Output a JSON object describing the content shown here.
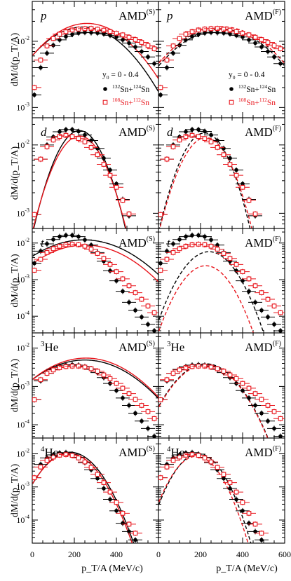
{
  "chart_data": {
    "type": "scatter",
    "layout": "5 rows x 2 columns, shared axes",
    "ylabel": "dM/d(p_T/A)",
    "xlabel": "p_T/A (MeV/c)",
    "xlim": [
      0,
      600
    ],
    "x_ticks": [
      "0",
      "200",
      "400",
      "600"
    ],
    "y_scale": "log",
    "legend": {
      "rapidity": "y0 = 0 - 0.4",
      "entries": [
        {
          "label": "132Sn+124Sn",
          "marker": "filled-circle",
          "color": "#000000"
        },
        {
          "label": "108Sn+112Sn",
          "marker": "open-square",
          "color": "#e8141b"
        }
      ]
    },
    "models": {
      "left": "AMD(S)",
      "right": "AMD(F)",
      "left_style": "solid",
      "right_style": "dashed"
    },
    "panels": [
      {
        "species": "p",
        "ylim": [
          0.0007,
          0.04
        ],
        "y_ticks": [
          {
            "value": 0.001,
            "base": "10",
            "exp": "-3"
          },
          {
            "value": 0.01,
            "base": "10",
            "exp": "-2"
          }
        ],
        "data_132": [
          [
            10,
            0.00155
          ],
          [
            40,
            0.004
          ],
          [
            70,
            0.0066
          ],
          [
            100,
            0.0087
          ],
          [
            130,
            0.0105
          ],
          [
            160,
            0.0118
          ],
          [
            190,
            0.0127
          ],
          [
            220,
            0.0133
          ],
          [
            250,
            0.0136
          ],
          [
            280,
            0.0135
          ],
          [
            310,
            0.0133
          ],
          [
            340,
            0.0129
          ],
          [
            370,
            0.0123
          ],
          [
            400,
            0.0116
          ],
          [
            430,
            0.0105
          ],
          [
            460,
            0.0094
          ],
          [
            490,
            0.0082
          ],
          [
            520,
            0.007
          ],
          [
            550,
            0.0058
          ],
          [
            580,
            0.0046
          ]
        ],
        "data_108": [
          [
            10,
            0.002
          ],
          [
            40,
            0.0052
          ],
          [
            70,
            0.0085
          ],
          [
            100,
            0.011
          ],
          [
            130,
            0.0128
          ],
          [
            160,
            0.014
          ],
          [
            190,
            0.0148
          ],
          [
            220,
            0.0153
          ],
          [
            250,
            0.0155
          ],
          [
            280,
            0.0156
          ],
          [
            310,
            0.0152
          ],
          [
            340,
            0.0147
          ],
          [
            370,
            0.014
          ],
          [
            400,
            0.0132
          ],
          [
            430,
            0.0125
          ],
          [
            460,
            0.0115
          ],
          [
            490,
            0.0106
          ],
          [
            520,
            0.0096
          ],
          [
            550,
            0.0086
          ],
          [
            580,
            0.0077
          ]
        ],
        "left_model": {
          "132": {
            "A": 0.0164,
            "mu": 240,
            "sigma": 240
          },
          "108": {
            "A": 0.0186,
            "mu": 260,
            "sigma": 245
          }
        },
        "right_model": {
          "132": {
            "A": 0.0152,
            "mu": 300,
            "sigma": 265
          },
          "108": {
            "A": 0.0166,
            "mu": 300,
            "sigma": 265
          }
        }
      },
      {
        "species": "d",
        "ylim": [
          0.0006,
          0.025
        ],
        "y_ticks": [
          {
            "value": 0.001,
            "base": "10",
            "exp": "-3"
          },
          {
            "value": 0.01,
            "base": "10",
            "exp": "-2"
          }
        ],
        "data_132": [
          [
            10,
            0.00096
          ],
          [
            40,
            0.0062
          ],
          [
            70,
            0.01
          ],
          [
            100,
            0.0131
          ],
          [
            130,
            0.0156
          ],
          [
            160,
            0.0168
          ],
          [
            190,
            0.0168
          ],
          [
            220,
            0.0158
          ],
          [
            250,
            0.014
          ],
          [
            280,
            0.0116
          ],
          [
            310,
            0.0089
          ],
          [
            340,
            0.0064
          ],
          [
            370,
            0.0043
          ],
          [
            400,
            0.0027
          ],
          [
            430,
            0.0016
          ],
          [
            460,
            0.00092
          ]
        ],
        "data_108": [
          [
            10,
            0.00096
          ],
          [
            40,
            0.0062
          ],
          [
            70,
            0.0094
          ],
          [
            100,
            0.0118
          ],
          [
            130,
            0.0133
          ],
          [
            160,
            0.0138
          ],
          [
            190,
            0.0133
          ],
          [
            220,
            0.0124
          ],
          [
            250,
            0.0111
          ],
          [
            280,
            0.0092
          ],
          [
            310,
            0.0072
          ],
          [
            340,
            0.0052
          ],
          [
            370,
            0.0036
          ],
          [
            400,
            0.0024
          ],
          [
            430,
            0.00155
          ],
          [
            460,
            0.00098
          ]
        ],
        "left_model": {
          "132": {
            "A": 0.0162,
            "mu": 225,
            "sigma": 120
          },
          "108": {
            "A": 0.0135,
            "mu": 225,
            "sigma": 125
          }
        },
        "right_model": {
          "132": {
            "A": 0.015,
            "mu": 220,
            "sigma": 120
          },
          "108": {
            "A": 0.0128,
            "mu": 225,
            "sigma": 125
          }
        }
      },
      {
        "species": "t",
        "ylim": [
          3.5e-05,
          0.025
        ],
        "y_ticks": [
          {
            "value": 0.0001,
            "base": "10",
            "exp": "-4"
          },
          {
            "value": 0.001,
            "base": "10",
            "exp": "-3"
          },
          {
            "value": 0.01,
            "base": "10",
            "exp": "-2"
          }
        ],
        "data_132": [
          [
            10,
            0.0028
          ],
          [
            40,
            0.006
          ],
          [
            70,
            0.0095
          ],
          [
            100,
            0.0125
          ],
          [
            130,
            0.015
          ],
          [
            160,
            0.0163
          ],
          [
            190,
            0.0163
          ],
          [
            220,
            0.015
          ],
          [
            250,
            0.0122
          ],
          [
            280,
            0.0088
          ],
          [
            310,
            0.0055
          ],
          [
            340,
            0.0032
          ],
          [
            370,
            0.00175
          ],
          [
            400,
            0.00093
          ],
          [
            430,
            0.00048
          ],
          [
            460,
            0.00024
          ],
          [
            490,
            0.000145
          ],
          [
            520,
            9.5e-05
          ],
          [
            550,
            6e-05
          ],
          [
            580,
            4e-05
          ]
        ],
        "data_108": [
          [
            10,
            0.0018
          ],
          [
            40,
            0.0036
          ],
          [
            70,
            0.0055
          ],
          [
            100,
            0.007
          ],
          [
            130,
            0.0082
          ],
          [
            160,
            0.009
          ],
          [
            190,
            0.0093
          ],
          [
            220,
            0.009
          ],
          [
            250,
            0.0082
          ],
          [
            280,
            0.0068
          ],
          [
            310,
            0.0052
          ],
          [
            340,
            0.0038
          ],
          [
            370,
            0.0026
          ],
          [
            400,
            0.00165
          ],
          [
            430,
            0.00105
          ],
          [
            460,
            0.00068
          ],
          [
            490,
            0.00044
          ],
          [
            520,
            0.00029
          ],
          [
            550,
            0.00019
          ],
          [
            580,
            0.000125
          ]
        ],
        "left_model": {
          "132": {
            "A": 0.0122,
            "mu": 245,
            "sigma": 240
          },
          "108": {
            "A": 0.0088,
            "mu": 250,
            "sigma": 230
          }
        },
        "right_model": {
          "132": {
            "A": 0.0058,
            "mu": 240,
            "sigma": 115
          },
          "108": {
            "A": 0.0024,
            "mu": 225,
            "sigma": 110
          }
        }
      },
      {
        "species": "3He",
        "ylim": [
          4.5e-05,
          0.025
        ],
        "y_ticks": [
          {
            "value": 0.0001,
            "base": "10",
            "exp": "-4"
          },
          {
            "value": 0.001,
            "base": "10",
            "exp": "-3"
          },
          {
            "value": 0.01,
            "base": "10",
            "exp": "-2"
          }
        ],
        "data_132": [
          [
            10,
            0.00045
          ],
          [
            40,
            0.0014
          ],
          [
            70,
            0.0022
          ],
          [
            100,
            0.0028
          ],
          [
            130,
            0.0033
          ],
          [
            160,
            0.0036
          ],
          [
            190,
            0.0037
          ],
          [
            220,
            0.0036
          ],
          [
            250,
            0.0033
          ],
          [
            280,
            0.0028
          ],
          [
            310,
            0.0023
          ],
          [
            340,
            0.0017
          ],
          [
            370,
            0.0012
          ],
          [
            400,
            0.00078
          ],
          [
            430,
            0.0005
          ],
          [
            460,
            0.00032
          ],
          [
            490,
            0.0002
          ],
          [
            520,
            0.000125
          ],
          [
            550,
            8e-05
          ],
          [
            580,
            5e-05
          ]
        ],
        "data_108": [
          [
            10,
            0.00045
          ],
          [
            40,
            0.0015
          ],
          [
            70,
            0.0022
          ],
          [
            100,
            0.0027
          ],
          [
            130,
            0.0031
          ],
          [
            160,
            0.0033
          ],
          [
            190,
            0.0034
          ],
          [
            220,
            0.0034
          ],
          [
            250,
            0.0032
          ],
          [
            280,
            0.0029
          ],
          [
            310,
            0.0025
          ],
          [
            340,
            0.002
          ],
          [
            370,
            0.0016
          ],
          [
            400,
            0.0012
          ],
          [
            430,
            0.0009
          ],
          [
            460,
            0.00065
          ],
          [
            490,
            0.00046
          ],
          [
            520,
            0.00032
          ],
          [
            550,
            0.00022
          ],
          [
            580,
            0.000145
          ]
        ],
        "left_model": {
          "132": {
            "A": 0.0049,
            "mu": 250,
            "sigma": 230
          },
          "108": {
            "A": 0.0055,
            "mu": 255,
            "sigma": 225
          }
        },
        "right_model": {
          "132": {
            "A": 0.0039,
            "mu": 225,
            "sigma": 140
          },
          "108": {
            "A": 0.0037,
            "mu": 225,
            "sigma": 140
          }
        }
      },
      {
        "species": "4He",
        "ylim": [
          2e-05,
          0.03
        ],
        "y_ticks": [
          {
            "value": 0.0001,
            "base": "10",
            "exp": "-4"
          },
          {
            "value": 0.001,
            "base": "10",
            "exp": "-3"
          },
          {
            "value": 0.01,
            "base": "10",
            "exp": "-2"
          }
        ],
        "data_132": [
          [
            10,
            0.0019
          ],
          [
            40,
            0.0048
          ],
          [
            70,
            0.0075
          ],
          [
            100,
            0.0093
          ],
          [
            130,
            0.0106
          ],
          [
            160,
            0.0109
          ],
          [
            190,
            0.0098
          ],
          [
            220,
            0.0078
          ],
          [
            250,
            0.0054
          ],
          [
            280,
            0.0033
          ],
          [
            310,
            0.0018
          ],
          [
            340,
            0.0009
          ],
          [
            370,
            0.00042
          ],
          [
            400,
            0.00019
          ],
          [
            430,
            8e-05
          ],
          [
            460,
            4.5e-05
          ],
          [
            490,
            2.5e-05
          ]
        ],
        "data_108": [
          [
            10,
            0.0019
          ],
          [
            40,
            0.004
          ],
          [
            70,
            0.0063
          ],
          [
            100,
            0.008
          ],
          [
            130,
            0.0091
          ],
          [
            160,
            0.0095
          ],
          [
            190,
            0.009
          ],
          [
            220,
            0.0075
          ],
          [
            250,
            0.0057
          ],
          [
            280,
            0.0039
          ],
          [
            310,
            0.0024
          ],
          [
            340,
            0.00135
          ],
          [
            370,
            0.0007
          ],
          [
            400,
            0.00034
          ],
          [
            430,
            0.00016
          ],
          [
            460,
            7.5e-05
          ],
          [
            490,
            4e-05
          ]
        ],
        "left_model": {
          "132": {
            "A": 0.0112,
            "mu": 180,
            "sigma": 120
          },
          "108": {
            "A": 0.0102,
            "mu": 175,
            "sigma": 120
          }
        },
        "right_model": {
          "132": {
            "A": 0.01,
            "mu": 190,
            "sigma": 100
          },
          "108": {
            "A": 0.0084,
            "mu": 180,
            "sigma": 100
          }
        }
      }
    ]
  }
}
